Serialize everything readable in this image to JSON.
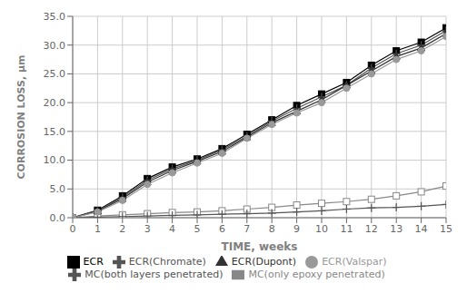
{
  "chart_data": {
    "type": "line",
    "xlabel": "TIME, weeks",
    "ylabel": "CORROSION LOSS, µm",
    "x": [
      0,
      1,
      2,
      3,
      4,
      5,
      6,
      7,
      8,
      9,
      10,
      11,
      12,
      13,
      14,
      15
    ],
    "xlim": [
      0,
      15
    ],
    "ylim": [
      0,
      35
    ],
    "xticks": [
      0,
      1,
      2,
      3,
      4,
      5,
      6,
      7,
      8,
      9,
      10,
      11,
      12,
      13,
      14,
      15
    ],
    "yticks": [
      {
        "value": 0,
        "label": "0.0"
      },
      {
        "value": 5,
        "label": "5.0"
      },
      {
        "value": 10,
        "label": "10.0"
      },
      {
        "value": 15,
        "label": "15.0"
      },
      {
        "value": 20,
        "label": "20.0"
      },
      {
        "value": 25,
        "label": "25.0"
      },
      {
        "value": 30,
        "label": "30.0"
      },
      {
        "value": 35,
        "label": "35.0"
      }
    ],
    "grid": true,
    "legend": "bottom",
    "series": [
      {
        "name": "ECR",
        "color": "#000000",
        "marker": "square",
        "values": [
          0,
          1.3,
          3.8,
          6.8,
          8.8,
          10.2,
          12.0,
          14.5,
          17.0,
          19.5,
          21.5,
          23.5,
          26.5,
          29.0,
          30.5,
          33.0
        ]
      },
      {
        "name": "MC(both layers penetrated)",
        "color": "#555555",
        "marker": "plus",
        "values": [
          0,
          1.2,
          3.5,
          6.5,
          8.5,
          10.0,
          11.8,
          14.2,
          16.8,
          19.0,
          21.0,
          23.0,
          26.0,
          28.5,
          30.0,
          32.5
        ]
      },
      {
        "name": "MC(only epoxy penetrated)",
        "color": "#888888",
        "marker": "square-open",
        "values": [
          0,
          0.3,
          0.5,
          0.7,
          0.9,
          1.0,
          1.2,
          1.5,
          1.8,
          2.2,
          2.5,
          2.8,
          3.2,
          3.8,
          4.5,
          5.5
        ]
      },
      {
        "name": "ECR(Dupont)",
        "color": "#333333",
        "marker": "triangle",
        "values": [
          0,
          1.1,
          3.3,
          6.2,
          8.2,
          9.8,
          11.5,
          14.0,
          16.5,
          18.5,
          20.5,
          23.0,
          25.5,
          28.0,
          29.5,
          32.0
        ]
      },
      {
        "name": "ECR(Chromate)",
        "color": "#555555",
        "marker": "plus",
        "values": [
          0,
          0.1,
          0.2,
          0.3,
          0.4,
          0.5,
          0.6,
          0.7,
          0.8,
          1.0,
          1.2,
          1.5,
          1.7,
          1.8,
          2.0,
          2.3
        ]
      },
      {
        "name": "ECR(Valspar)",
        "color": "#999999",
        "marker": "circle",
        "values": [
          0,
          1.0,
          3.0,
          5.8,
          7.8,
          9.5,
          11.2,
          13.8,
          16.2,
          18.2,
          20.0,
          22.5,
          25.0,
          27.5,
          29.0,
          31.5
        ]
      }
    ]
  }
}
